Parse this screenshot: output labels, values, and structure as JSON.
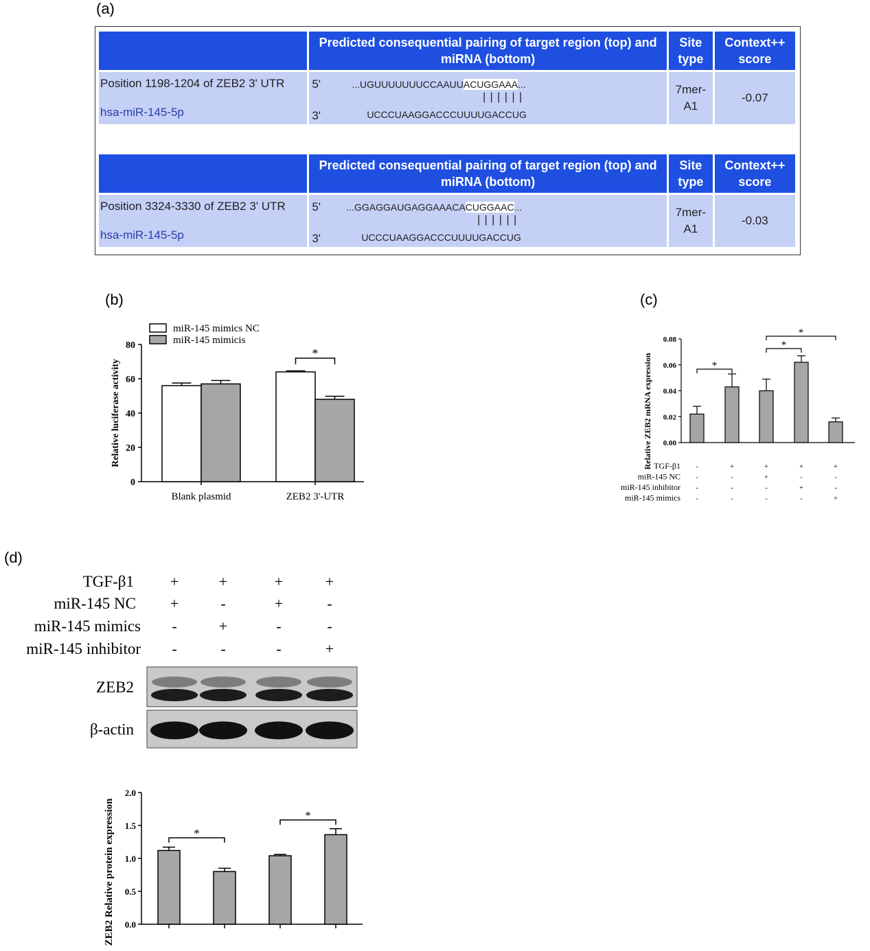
{
  "panel_a": {
    "label": "(a)",
    "tables": [
      {
        "header": [
          "",
          "Predicted consequential pairing of target region (top) and miRNA (bottom)",
          "Site type",
          "Context++ score"
        ],
        "position": "Position 1198-1204 of ZEB2 3' UTR",
        "mirna": "hsa-miR-145-5p",
        "five_prime": "5'",
        "three_prime": "3'",
        "target_pre": "...UGUUUUUUUCCAAUU",
        "target_hl": "ACUGGAAA",
        "target_post": "...",
        "pairing": "||||||",
        "mirna_seq": "UCCCUAAGGACCCUUUUGACCUG",
        "site_type": [
          "7mer-",
          "A1"
        ],
        "score": "-0.07"
      },
      {
        "header": [
          "",
          "Predicted consequential pairing of target region (top) and miRNA (bottom)",
          "Site type",
          "Context++ score"
        ],
        "position": "Position 3324-3330 of ZEB2 3' UTR",
        "mirna": "hsa-miR-145-5p",
        "five_prime": "5'",
        "three_prime": "3'",
        "target_pre": "...GGAGGAUGAGGAAACA",
        "target_hl": "CUGGAAC",
        "target_post": "...",
        "pairing": "||||||",
        "mirna_seq": "UCCCUAAGGACCCUUUUGACCUG",
        "site_type": [
          "7mer-",
          "A1"
        ],
        "score": "-0.03"
      }
    ]
  },
  "panel_b": {
    "label": "(b)",
    "chart_data": {
      "type": "bar",
      "categories": [
        "Blank plasmid",
        "ZEB2 3'-UTR"
      ],
      "series": [
        {
          "name": "miR-145 mimics NC",
          "values": [
            56,
            64
          ],
          "errors": [
            1.5,
            0.6
          ],
          "color": "#ffffff"
        },
        {
          "name": "miR-145 mimicis",
          "values": [
            57,
            48
          ],
          "errors": [
            2.0,
            1.8
          ],
          "color": "#a6a6a6"
        }
      ],
      "ylabel": "Relative luciferase activity",
      "ylim": [
        0,
        80
      ],
      "yticks": [
        "0",
        "20",
        "40",
        "60",
        "80"
      ],
      "significance": [
        "*"
      ]
    }
  },
  "panel_c": {
    "label": "(c)",
    "chart_data": {
      "type": "bar",
      "values": [
        0.022,
        0.043,
        0.04,
        0.062,
        0.016
      ],
      "errors": [
        0.006,
        0.01,
        0.009,
        0.005,
        0.003
      ],
      "ylabel": "Relative ZEB2 mRNA expression",
      "ylim": [
        0,
        0.08
      ],
      "yticks": [
        "0.00",
        "0.02",
        "0.04",
        "0.06",
        "0.08"
      ],
      "significance": [
        "*",
        "*",
        "*"
      ],
      "conditions": [
        {
          "name": "TGF-β1",
          "signs": [
            "-",
            "+",
            "+",
            "+",
            "+"
          ]
        },
        {
          "name": "miR-145 NC",
          "signs": [
            "-",
            "-",
            "+",
            "-",
            "-"
          ]
        },
        {
          "name": "miR-145 inhibitor",
          "signs": [
            "-",
            "-",
            "-",
            "+",
            "-"
          ]
        },
        {
          "name": "miR-145 mimics",
          "signs": [
            "-",
            "-",
            "-",
            "-",
            "+"
          ]
        }
      ]
    }
  },
  "panel_d": {
    "label": "(d)",
    "conditions": [
      {
        "name": "TGF-β1",
        "signs": [
          "+",
          "+",
          "+",
          "+"
        ]
      },
      {
        "name": "miR-145  NC",
        "signs": [
          "+",
          "-",
          "+",
          "-"
        ]
      },
      {
        "name": "miR-145 mimics",
        "signs": [
          "-",
          "+",
          "-",
          "-"
        ]
      },
      {
        "name": "miR-145 inhibitor",
        "signs": [
          "-",
          "-",
          "-",
          "+"
        ]
      }
    ],
    "blots": [
      "ZEB2",
      "β-actin"
    ],
    "chart_data": {
      "type": "bar",
      "values": [
        1.12,
        0.8,
        1.04,
        1.36
      ],
      "errors": [
        0.05,
        0.05,
        0.02,
        0.09
      ],
      "ylabel": "ZEB2 Relative protein expression",
      "ylim": [
        0,
        2.0
      ],
      "yticks": [
        "0.0",
        "0.5",
        "1.0",
        "1.5",
        "2.0"
      ],
      "significance": [
        "*",
        "*"
      ]
    }
  }
}
